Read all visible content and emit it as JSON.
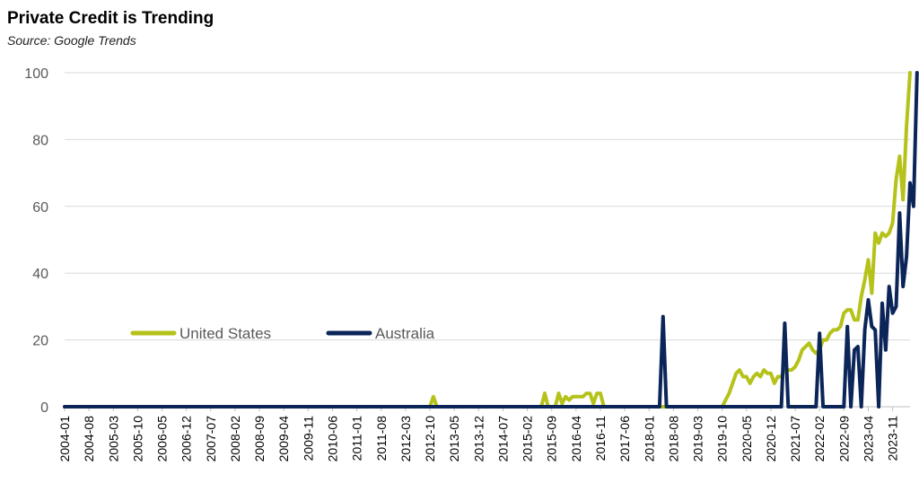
{
  "title": "Private Credit is Trending",
  "subtitle": "Source: Google Trends",
  "chart_data": {
    "type": "line",
    "title": "Private Credit is Trending",
    "subtitle": "Source: Google Trends",
    "ylim": [
      0,
      100
    ],
    "y_ticks": [
      0,
      20,
      40,
      60,
      80,
      100
    ],
    "x_ticks": [
      "2004-01",
      "2004-08",
      "2005-03",
      "2005-10",
      "2006-05",
      "2006-12",
      "2007-07",
      "2008-02",
      "2008-09",
      "2009-04",
      "2009-11",
      "2010-06",
      "2011-01",
      "2011-08",
      "2012-03",
      "2012-10",
      "2013-05",
      "2013-12",
      "2014-07",
      "2015-02",
      "2015-09",
      "2016-04",
      "2016-11",
      "2017-06",
      "2018-01",
      "2018-08",
      "2019-03",
      "2019-10",
      "2020-05",
      "2020-12",
      "2021-07",
      "2022-02",
      "2022-09",
      "2023-04",
      "2023-11"
    ],
    "x_range": [
      "2004-01",
      "2024-04"
    ],
    "grid": true,
    "legend": "center-left",
    "colors": {
      "United States": "#B5C21A",
      "Australia": "#0B2559"
    },
    "series": [
      {
        "name": "United States",
        "points": [
          [
            "2004-01",
            0
          ],
          [
            "2012-10",
            0
          ],
          [
            "2012-11",
            3
          ],
          [
            "2012-12",
            0
          ],
          [
            "2015-06",
            0
          ],
          [
            "2015-07",
            4
          ],
          [
            "2015-08",
            0
          ],
          [
            "2015-10",
            0
          ],
          [
            "2015-11",
            4
          ],
          [
            "2015-12",
            1
          ],
          [
            "2016-01",
            3
          ],
          [
            "2016-02",
            2
          ],
          [
            "2016-03",
            3
          ],
          [
            "2016-04",
            3
          ],
          [
            "2016-05",
            3
          ],
          [
            "2016-06",
            3
          ],
          [
            "2016-07",
            4
          ],
          [
            "2016-08",
            4
          ],
          [
            "2016-09",
            1
          ],
          [
            "2016-10",
            4
          ],
          [
            "2016-11",
            4
          ],
          [
            "2016-12",
            0
          ],
          [
            "2019-10",
            0
          ],
          [
            "2019-12",
            4
          ],
          [
            "2020-02",
            10
          ],
          [
            "2020-03",
            11
          ],
          [
            "2020-04",
            9
          ],
          [
            "2020-05",
            9
          ],
          [
            "2020-06",
            7
          ],
          [
            "2020-07",
            9
          ],
          [
            "2020-08",
            10
          ],
          [
            "2020-09",
            9
          ],
          [
            "2020-10",
            11
          ],
          [
            "2020-11",
            10
          ],
          [
            "2020-12",
            10
          ],
          [
            "2021-01",
            7
          ],
          [
            "2021-02",
            9
          ],
          [
            "2021-03",
            9
          ],
          [
            "2021-04",
            11
          ],
          [
            "2021-05",
            11
          ],
          [
            "2021-06",
            11
          ],
          [
            "2021-07",
            12
          ],
          [
            "2021-08",
            14
          ],
          [
            "2021-09",
            17
          ],
          [
            "2021-10",
            18
          ],
          [
            "2021-11",
            19
          ],
          [
            "2021-12",
            17
          ],
          [
            "2022-01",
            16
          ],
          [
            "2022-02",
            17
          ],
          [
            "2022-03",
            20
          ],
          [
            "2022-04",
            20
          ],
          [
            "2022-05",
            22
          ],
          [
            "2022-06",
            23
          ],
          [
            "2022-07",
            23
          ],
          [
            "2022-08",
            24
          ],
          [
            "2022-09",
            28
          ],
          [
            "2022-10",
            29
          ],
          [
            "2022-11",
            29
          ],
          [
            "2022-12",
            26
          ],
          [
            "2023-01",
            26
          ],
          [
            "2023-02",
            33
          ],
          [
            "2023-03",
            38
          ],
          [
            "2023-04",
            44
          ],
          [
            "2023-05",
            34
          ],
          [
            "2023-06",
            52
          ],
          [
            "2023-07",
            49
          ],
          [
            "2023-08",
            52
          ],
          [
            "2023-09",
            51
          ],
          [
            "2023-10",
            52
          ],
          [
            "2023-11",
            55
          ],
          [
            "2023-12",
            68
          ],
          [
            "2024-01",
            75
          ],
          [
            "2024-02",
            62
          ],
          [
            "2024-03",
            84
          ],
          [
            "2024-04",
            100
          ]
        ]
      },
      {
        "name": "Australia",
        "points": [
          [
            "2004-01",
            0
          ],
          [
            "2018-04",
            0
          ],
          [
            "2018-05",
            27
          ],
          [
            "2018-06",
            0
          ],
          [
            "2021-03",
            0
          ],
          [
            "2021-04",
            25
          ],
          [
            "2021-05",
            0
          ],
          [
            "2022-01",
            0
          ],
          [
            "2022-02",
            22
          ],
          [
            "2022-03",
            0
          ],
          [
            "2022-09",
            0
          ],
          [
            "2022-10",
            24
          ],
          [
            "2022-11",
            0
          ],
          [
            "2022-12",
            17
          ],
          [
            "2023-01",
            18
          ],
          [
            "2023-02",
            0
          ],
          [
            "2023-03",
            23
          ],
          [
            "2023-04",
            32
          ],
          [
            "2023-05",
            24
          ],
          [
            "2023-06",
            23
          ],
          [
            "2023-07",
            0
          ],
          [
            "2023-08",
            31
          ],
          [
            "2023-09",
            17
          ],
          [
            "2023-10",
            36
          ],
          [
            "2023-11",
            28
          ],
          [
            "2023-12",
            30
          ],
          [
            "2024-01",
            58
          ],
          [
            "2024-02",
            36
          ],
          [
            "2024-03",
            45
          ],
          [
            "2024-04",
            67
          ],
          [
            "2024-05",
            60
          ],
          [
            "2024-06",
            100
          ]
        ]
      }
    ]
  }
}
